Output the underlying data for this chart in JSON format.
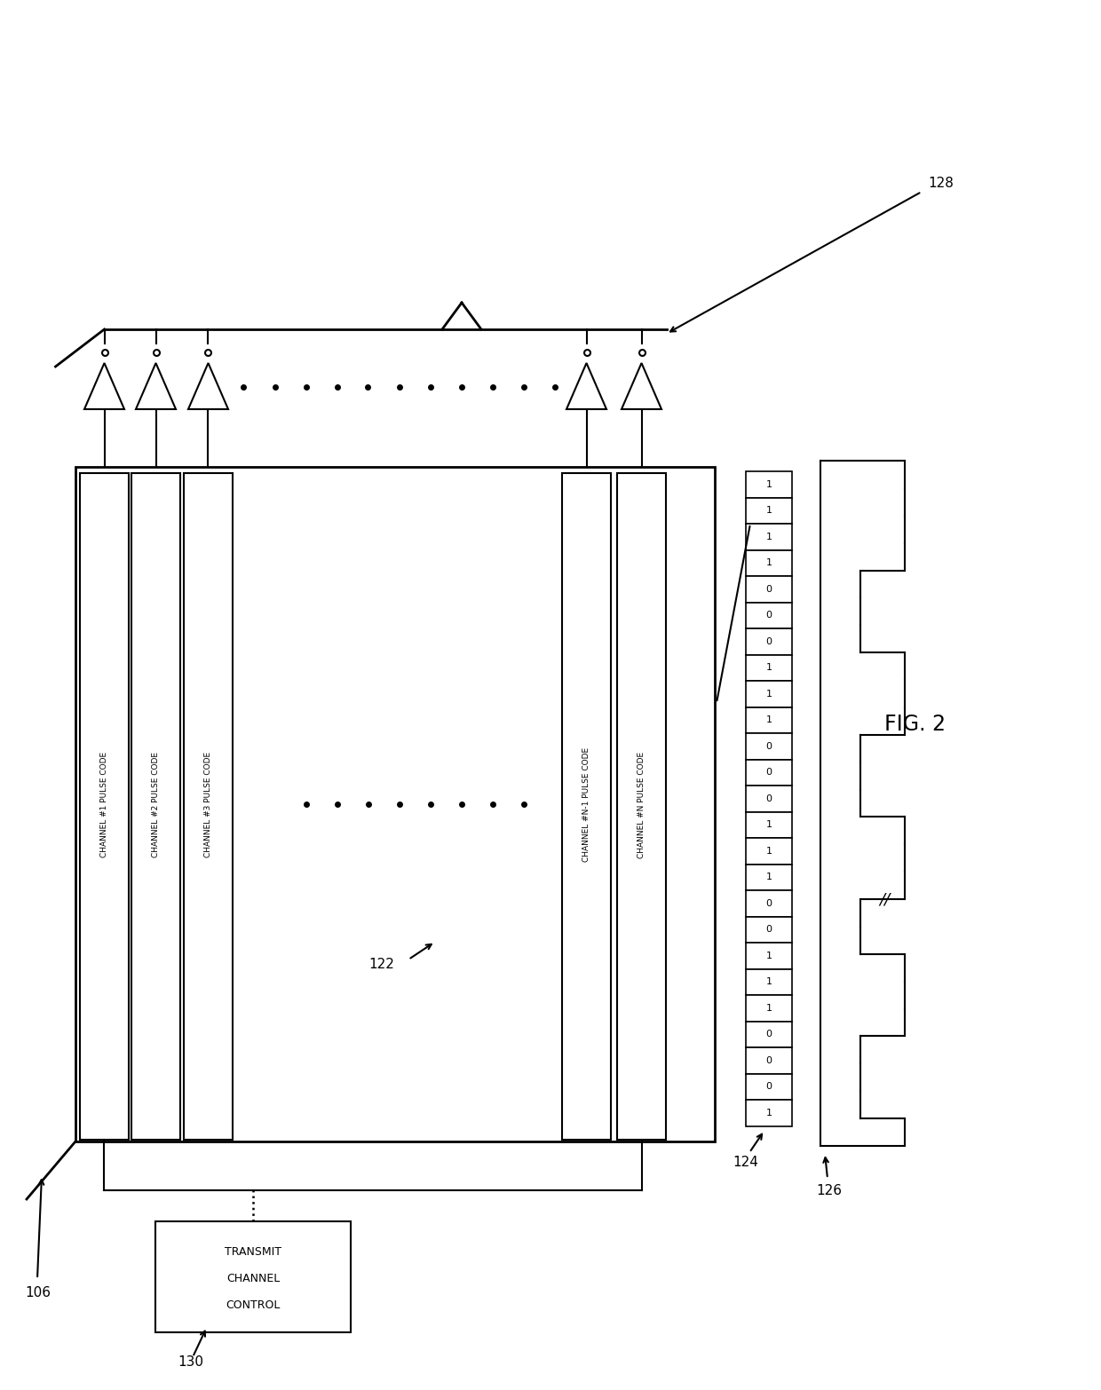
{
  "fig_label": "FIG. 2",
  "ref_106": "106",
  "ref_122": "122",
  "ref_124": "124",
  "ref_126": "126",
  "ref_128": "128",
  "ref_130": "130",
  "channel_labels": [
    "CHANNEL #1 PULSE CODE",
    "CHANNEL #2 PULSE CODE",
    "CHANNEL #3 PULSE CODE",
    "CHANNEL #N-1 PULSE CODE",
    "CHANNEL #N PULSE CODE"
  ],
  "binary_vals": [
    1,
    1,
    1,
    1,
    0,
    0,
    0,
    1,
    1,
    1,
    0,
    0,
    0,
    1,
    1,
    1,
    0,
    0,
    1,
    1,
    1,
    0,
    0,
    0,
    1
  ],
  "bg_color": "#ffffff",
  "line_color": "#000000",
  "text_color": "#000000"
}
